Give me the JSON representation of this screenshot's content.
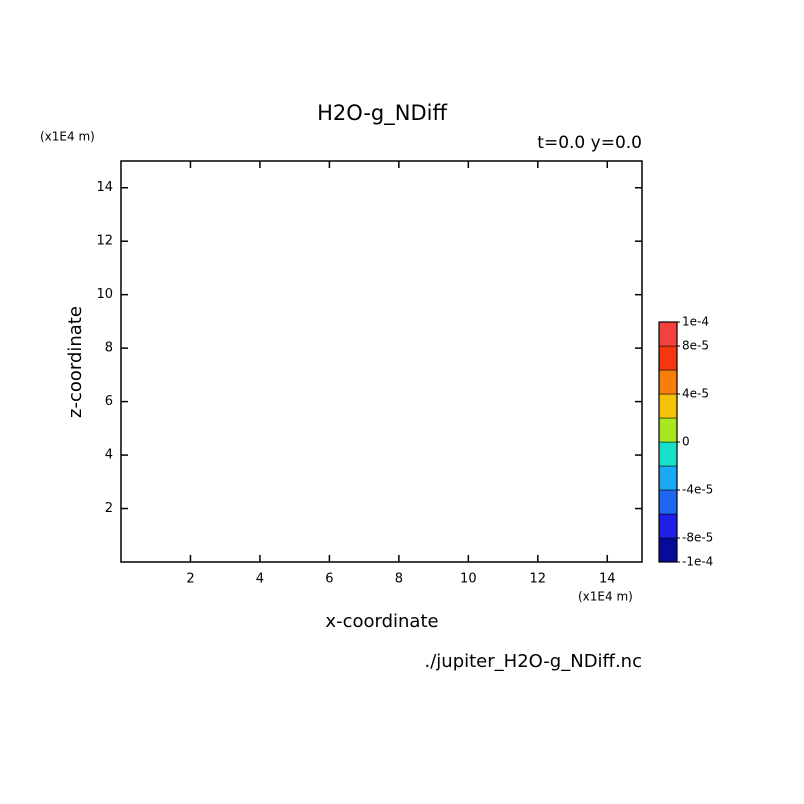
{
  "chart_data": {
    "type": "contour",
    "title": "H2O-g_NDiff",
    "subtitle": "t=0.0 y=0.0",
    "xlabel": "x-coordinate",
    "ylabel": "z-coordinate",
    "x_unit": "(x1E4 m)",
    "y_unit": "(x1E4 m)",
    "source": "./jupiter_H2O-g_NDiff.nc",
    "xlim": [
      0,
      15
    ],
    "xticks": [
      2,
      4,
      6,
      8,
      10,
      12,
      14
    ],
    "ylim": [
      0,
      15
    ],
    "yticks": [
      2,
      4,
      6,
      8,
      10,
      12,
      14
    ],
    "colorbar": {
      "clim": [
        -0.0001,
        0.0001
      ],
      "colors": [
        "#0a0a9a",
        "#1f1fe6",
        "#1f66f0",
        "#1aa8f0",
        "#18e0c8",
        "#a8e61e",
        "#f5c20a",
        "#f57f0a",
        "#f5360f",
        "#f54040"
      ],
      "ticks": [
        {
          "value": -0.0001,
          "label": "-1e-4"
        },
        {
          "value": -8e-05,
          "label": "-8e-5"
        },
        {
          "value": -4e-05,
          "label": "-4e-5"
        },
        0,
        {
          "value": 4e-05,
          "label": "4e-5"
        },
        {
          "value": 8e-05,
          "label": "8e-5"
        },
        {
          "value": 0.0001,
          "label": "1e-4"
        }
      ]
    }
  }
}
